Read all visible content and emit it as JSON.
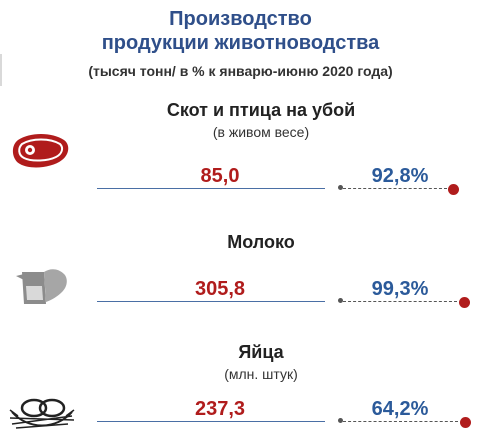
{
  "header": {
    "title_line1": "Производство",
    "title_line2": "продукции животноводства",
    "subtitle": "(тысяч тонн/ в % к январю-июню 2020 года)"
  },
  "items": [
    {
      "name": "Скот и птица на убой",
      "note": "(в живом весе)",
      "value": "85,0",
      "percent": "92,8%",
      "icon": "meat-steak-icon"
    },
    {
      "name": "Молоко",
      "value": "305,8",
      "percent": "99,3%",
      "icon": "milk-jug-icon"
    },
    {
      "name": "Яйца",
      "note": "(млн. штук)",
      "value": "237,3",
      "percent": "64,2%",
      "icon": "eggs-nest-icon"
    }
  ],
  "colors": {
    "title": "#2f4f8a",
    "value": "#b01c1c",
    "percent": "#2b5a9a",
    "icon": "#b01c1c"
  }
}
